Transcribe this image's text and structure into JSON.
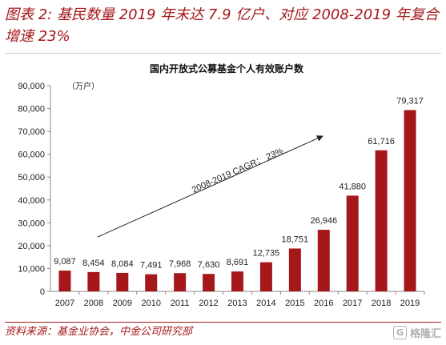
{
  "figure": {
    "title": "图表 2: 基民数量 2019 年末达 7.9 亿户、对应 2008-2019 年复合增速 23%",
    "source": "资料来源：基金业协会，中金公司研究部",
    "watermark_text": "格隆汇",
    "watermark_icon": "brand-logo-icon",
    "accent_color": "#a5171a"
  },
  "chart_data": {
    "type": "bar",
    "title": "国内开放式公募基金个人有效账户数",
    "unit": "（万户）",
    "categories": [
      "2007",
      "2008",
      "2009",
      "2010",
      "2011",
      "2012",
      "2013",
      "2014",
      "2015",
      "2016",
      "2017",
      "2018",
      "2019"
    ],
    "values": [
      9087,
      8454,
      8084,
      7491,
      7968,
      7630,
      8691,
      12735,
      18751,
      26946,
      41880,
      61716,
      79317
    ],
    "value_labels": [
      "9,087",
      "8,454",
      "8,084",
      "7,491",
      "7,968",
      "7,630",
      "8,691",
      "12,735",
      "18,751",
      "26,946",
      "41,880",
      "61,716",
      "79,317"
    ],
    "ylim": [
      0,
      90000
    ],
    "yticks": [
      0,
      10000,
      20000,
      30000,
      40000,
      50000,
      60000,
      70000,
      80000,
      90000
    ],
    "ytick_labels": [
      "0",
      "10,000",
      "20,000",
      "30,000",
      "40,000",
      "50,000",
      "60,000",
      "70,000",
      "80,000",
      "90,000"
    ],
    "bar_color": "#a5171a",
    "annotation": "2008-2019 CAGR： 23%",
    "grid": false
  }
}
